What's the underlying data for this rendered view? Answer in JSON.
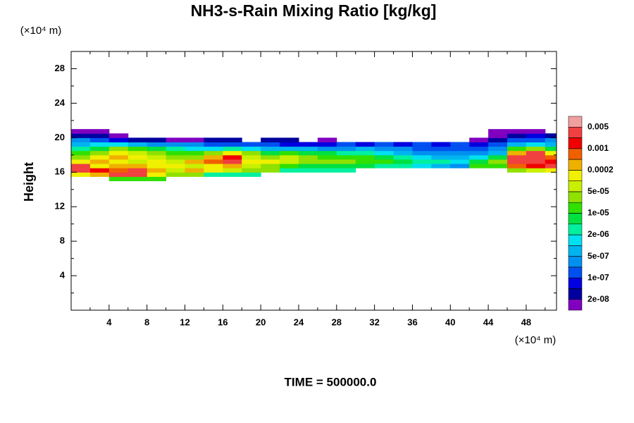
{
  "chart_data": {
    "type": "contour",
    "title": "NH3-s-Rain Mixing Ratio [kg/kg]",
    "ylabel": "Height",
    "y_unit": "(×10⁴ m)",
    "x_unit": "(×10⁴ m)",
    "annotation": "TIME = 500000.0",
    "xlim": [
      0,
      51.2
    ],
    "ylim": [
      0,
      30
    ],
    "xticks": [
      4,
      8,
      12,
      16,
      20,
      24,
      28,
      32,
      36,
      40,
      44,
      48
    ],
    "yticks": [
      4,
      8,
      12,
      16,
      20,
      24,
      28
    ],
    "xminorticks": [
      2,
      6,
      10,
      14,
      18,
      22,
      26,
      30,
      34,
      38,
      42,
      46,
      50
    ],
    "yminorticks": [
      2,
      6,
      10,
      14,
      18,
      22,
      26
    ],
    "levels": [
      2e-08,
      5e-08,
      1e-07,
      2e-07,
      5e-07,
      1e-06,
      2e-06,
      5e-06,
      1e-05,
      2e-05,
      5e-05,
      0.0001,
      0.0002,
      0.0005,
      0.001,
      0.002,
      0.005
    ],
    "colors": [
      "#8000c0",
      "#0000a0",
      "#0000e0",
      "#0050f0",
      "#0090f0",
      "#00b4f0",
      "#00e0f0",
      "#00f0a0",
      "#00e040",
      "#30e000",
      "#90e000",
      "#c8f000",
      "#f0f000",
      "#f0b000",
      "#f06000",
      "#f00000",
      "#f04040",
      "#f0a0a0"
    ],
    "colorbar_ticks": [
      0.005,
      0.001,
      0.0002,
      {
        "value": 5e-05,
        "label": "5e-05"
      },
      {
        "value": 1e-05,
        "label": "1e-05"
      },
      {
        "value": 2e-06,
        "label": "2e-06"
      },
      {
        "value": 5e-07,
        "label": "5e-07"
      },
      {
        "value": 1e-07,
        "label": "1e-07"
      },
      {
        "value": 2e-08,
        "label": "2e-08"
      }
    ],
    "x": [
      0,
      2,
      4,
      6,
      8,
      10,
      12,
      14,
      16,
      18,
      20,
      22,
      24,
      26,
      28,
      30,
      32,
      34,
      36,
      38,
      40,
      42,
      44,
      46,
      48,
      50
    ],
    "y": [
      15,
      15.5,
      16,
      16.5,
      17,
      17.5,
      18,
      18.5,
      19,
      19.5,
      20,
      20.5
    ],
    "z": [
      [
        0,
        0,
        1e-05,
        1e-05,
        1e-05,
        0,
        0,
        0,
        0,
        0,
        0,
        0,
        0,
        0,
        0,
        0,
        0,
        0,
        0,
        0,
        0,
        0,
        0,
        0,
        0,
        0
      ],
      [
        0.0001,
        0.0003,
        0.002,
        0.002,
        0.0001,
        2e-05,
        2e-05,
        3e-06,
        3e-06,
        3e-06,
        0,
        0,
        0,
        0,
        0,
        0,
        0,
        0,
        0,
        0,
        0,
        0,
        0,
        0,
        0,
        0
      ],
      [
        0.002,
        0.001,
        0.0005,
        0.003,
        0.0004,
        5e-05,
        0.0004,
        0.0001,
        5e-05,
        2e-05,
        2e-05,
        3e-06,
        3e-06,
        3e-06,
        3e-06,
        0,
        0,
        0,
        0,
        0,
        0,
        0,
        0,
        2e-05,
        5e-05,
        0.0001
      ],
      [
        0.003,
        0.0001,
        0.0002,
        0.0003,
        0.0001,
        0.0001,
        5e-05,
        0.0001,
        0.0002,
        5e-05,
        2e-05,
        1e-05,
        5e-06,
        5e-06,
        5e-06,
        5e-06,
        3e-06,
        2e-06,
        1e-06,
        6e-07,
        3e-07,
        1e-05,
        1e-05,
        0.0005,
        0.001,
        0.003
      ],
      [
        0.0001,
        0.0002,
        0.0001,
        5e-05,
        0.0001,
        5e-05,
        0.0002,
        0.0005,
        0.003,
        0.0001,
        0.0001,
        5e-05,
        3e-05,
        3e-05,
        2e-05,
        1e-05,
        1e-05,
        5e-06,
        3e-06,
        3e-06,
        1e-06,
        5e-06,
        3e-05,
        0.003,
        0.003,
        0.001
      ],
      [
        3e-05,
        0.0001,
        0.0002,
        0.0001,
        5e-05,
        3e-05,
        2e-05,
        0.0003,
        0.001,
        5e-05,
        3e-05,
        5e-05,
        2e-05,
        1e-05,
        1e-05,
        1e-05,
        5e-06,
        3e-06,
        1e-06,
        5e-07,
        5e-07,
        1e-06,
        5e-06,
        0.002,
        0.004,
        0.0005
      ],
      [
        1e-05,
        3e-05,
        0.0001,
        5e-05,
        2e-05,
        1e-05,
        1e-05,
        3e-05,
        0.0001,
        2e-05,
        5e-06,
        1e-05,
        5e-06,
        5e-06,
        3e-06,
        2e-06,
        1e-06,
        6e-07,
        3e-07,
        2e-07,
        3e-07,
        3e-07,
        6e-07,
        0.0003,
        0.002,
        0.0001
      ],
      [
        3e-06,
        5e-06,
        2e-05,
        1e-05,
        5e-06,
        2e-06,
        1e-06,
        1e-06,
        2e-06,
        1e-06,
        6e-07,
        6e-07,
        6e-07,
        3e-07,
        3e-07,
        6e-07,
        3e-07,
        2e-07,
        1e-07,
        1e-07,
        1e-07,
        1e-07,
        2e-07,
        1e-05,
        2e-05,
        5e-06
      ],
      [
        6e-07,
        1e-06,
        1e-06,
        6e-07,
        3e-07,
        3e-07,
        2e-07,
        1e-07,
        1e-07,
        1e-07,
        1e-07,
        6e-08,
        6e-08,
        6e-08,
        1e-07,
        6e-08,
        1e-07,
        6e-08,
        1e-07,
        6e-08,
        1e-07,
        6e-08,
        1e-07,
        6e-07,
        1e-06,
        6e-07
      ],
      [
        2e-07,
        1e-07,
        6e-08,
        3e-08,
        3e-08,
        1.5e-08,
        1.5e-08,
        3e-08,
        3e-08,
        0,
        3e-08,
        3e-08,
        0,
        1.5e-08,
        0,
        0,
        0,
        0,
        0,
        0,
        0,
        1.5e-08,
        3e-08,
        1e-07,
        1e-07,
        2e-07
      ],
      [
        3e-08,
        3e-08,
        1.5e-08,
        0,
        0,
        0,
        0,
        0,
        0,
        0,
        0,
        0,
        0,
        0,
        0,
        0,
        0,
        0,
        0,
        0,
        0,
        0,
        1.5e-08,
        3e-08,
        6e-08,
        3e-08
      ],
      [
        1.5e-08,
        1.5e-08,
        0,
        0,
        0,
        0,
        0,
        0,
        0,
        0,
        0,
        0,
        0,
        0,
        0,
        0,
        0,
        0,
        0,
        0,
        0,
        0,
        1.5e-08,
        1.5e-08,
        1.5e-08,
        0
      ]
    ]
  }
}
